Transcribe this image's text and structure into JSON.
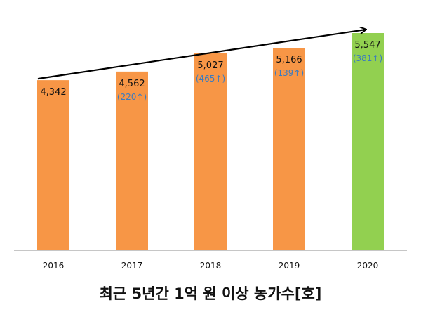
{
  "chart_data": {
    "type": "bar",
    "title": "최근 5년간 1억 원 이상 농가수[호]",
    "categories": [
      "2016",
      "2017",
      "2018",
      "2019",
      "2020"
    ],
    "values": [
      4342,
      4562,
      5027,
      5166,
      5547
    ],
    "value_labels": [
      "4,342",
      "4,562",
      "5,027",
      "5,166",
      "5,547"
    ],
    "increase_labels": [
      "",
      "(220↑)",
      "(465↑)",
      "(139↑)",
      "(381↑)"
    ],
    "ylim": [
      0,
      5547
    ],
    "grid": false,
    "legend": "none",
    "trend_arrow": true,
    "colors": {
      "default": "#f79646",
      "highlight": "#92d050",
      "increase_text": "#3b7bbf",
      "axis": "#8c8c8c",
      "arrow": "#000000"
    },
    "highlight_index": 4
  }
}
